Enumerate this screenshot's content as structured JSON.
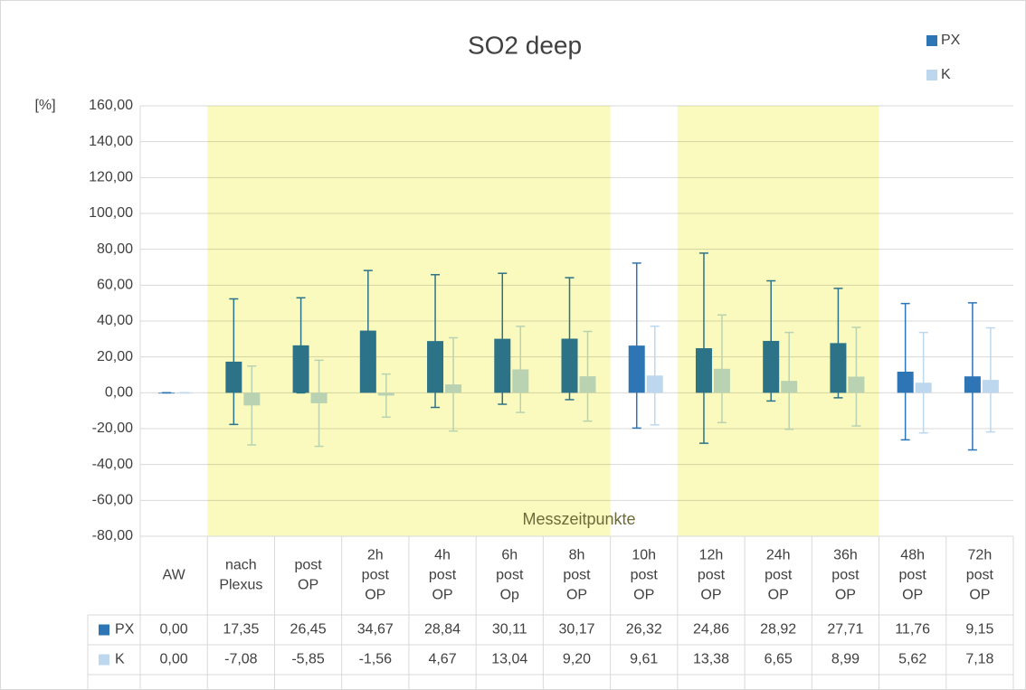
{
  "chart_data": {
    "type": "bar",
    "title": "SO2 deep",
    "y_label": "[%]",
    "annotation": "Messzeitpunkte",
    "categories": [
      "AW",
      "nach Plexus",
      "post OP",
      "2h post OP",
      "4h post OP",
      "6h post Op",
      "8h post OP",
      "10h post OP",
      "12h post OP",
      "24h post OP",
      "36h post OP",
      "48h post OP",
      "72h post OP"
    ],
    "series": [
      {
        "name": "PX",
        "color": "#2e75b6",
        "values": [
          0,
          17.35,
          26.45,
          34.67,
          28.84,
          30.11,
          30.17,
          26.32,
          24.86,
          28.92,
          27.71,
          11.76,
          9.15
        ],
        "value_labels": [
          "0,00",
          "17,35",
          "26,45",
          "34,67",
          "28,84",
          "30,11",
          "30,17",
          "26,32",
          "24,86",
          "28,92",
          "27,71",
          "11,76",
          "9,15"
        ],
        "errors": [
          0,
          35,
          26.5,
          33.5,
          37,
          36.5,
          34,
          46,
          53,
          33.5,
          30.5,
          38,
          41
        ]
      },
      {
        "name": "K",
        "color": "#bdd7ee",
        "values": [
          0,
          -7.08,
          -5.85,
          -1.56,
          4.67,
          13.04,
          9.2,
          9.61,
          13.38,
          6.65,
          8.99,
          5.62,
          7.18
        ],
        "value_labels": [
          "0,00",
          "-7,08",
          "-5,85",
          "-1,56",
          "4,67",
          "13,04",
          "9,20",
          "9,61",
          "13,38",
          "6,65",
          "8,99",
          "5,62",
          "7,18"
        ],
        "errors": [
          0,
          22,
          24,
          12,
          26,
          24,
          25,
          27.5,
          30,
          27,
          27.5,
          28,
          29
        ]
      }
    ],
    "highlight": [
      [
        1,
        6
      ],
      [
        8,
        10
      ]
    ],
    "highlight_color": "#fafabe",
    "ylim": [
      -80,
      160
    ],
    "yticks": [
      {
        "value": -80,
        "label": "-80,00"
      },
      {
        "value": -60,
        "label": "-60,00"
      },
      {
        "value": -40,
        "label": "-40,00"
      },
      {
        "value": -20,
        "label": "-20,00"
      },
      {
        "value": 0,
        "label": "0,00"
      },
      {
        "value": 20,
        "label": "20,00"
      },
      {
        "value": 40,
        "label": "40,00"
      },
      {
        "value": 60,
        "label": "60,00"
      },
      {
        "value": 80,
        "label": "80,00"
      },
      {
        "value": 100,
        "label": "100,00"
      },
      {
        "value": 120,
        "label": "120,00"
      },
      {
        "value": 140,
        "label": "140,00"
      },
      {
        "value": 160,
        "label": "160,00"
      }
    ],
    "grid": true,
    "legend": "top-right"
  }
}
